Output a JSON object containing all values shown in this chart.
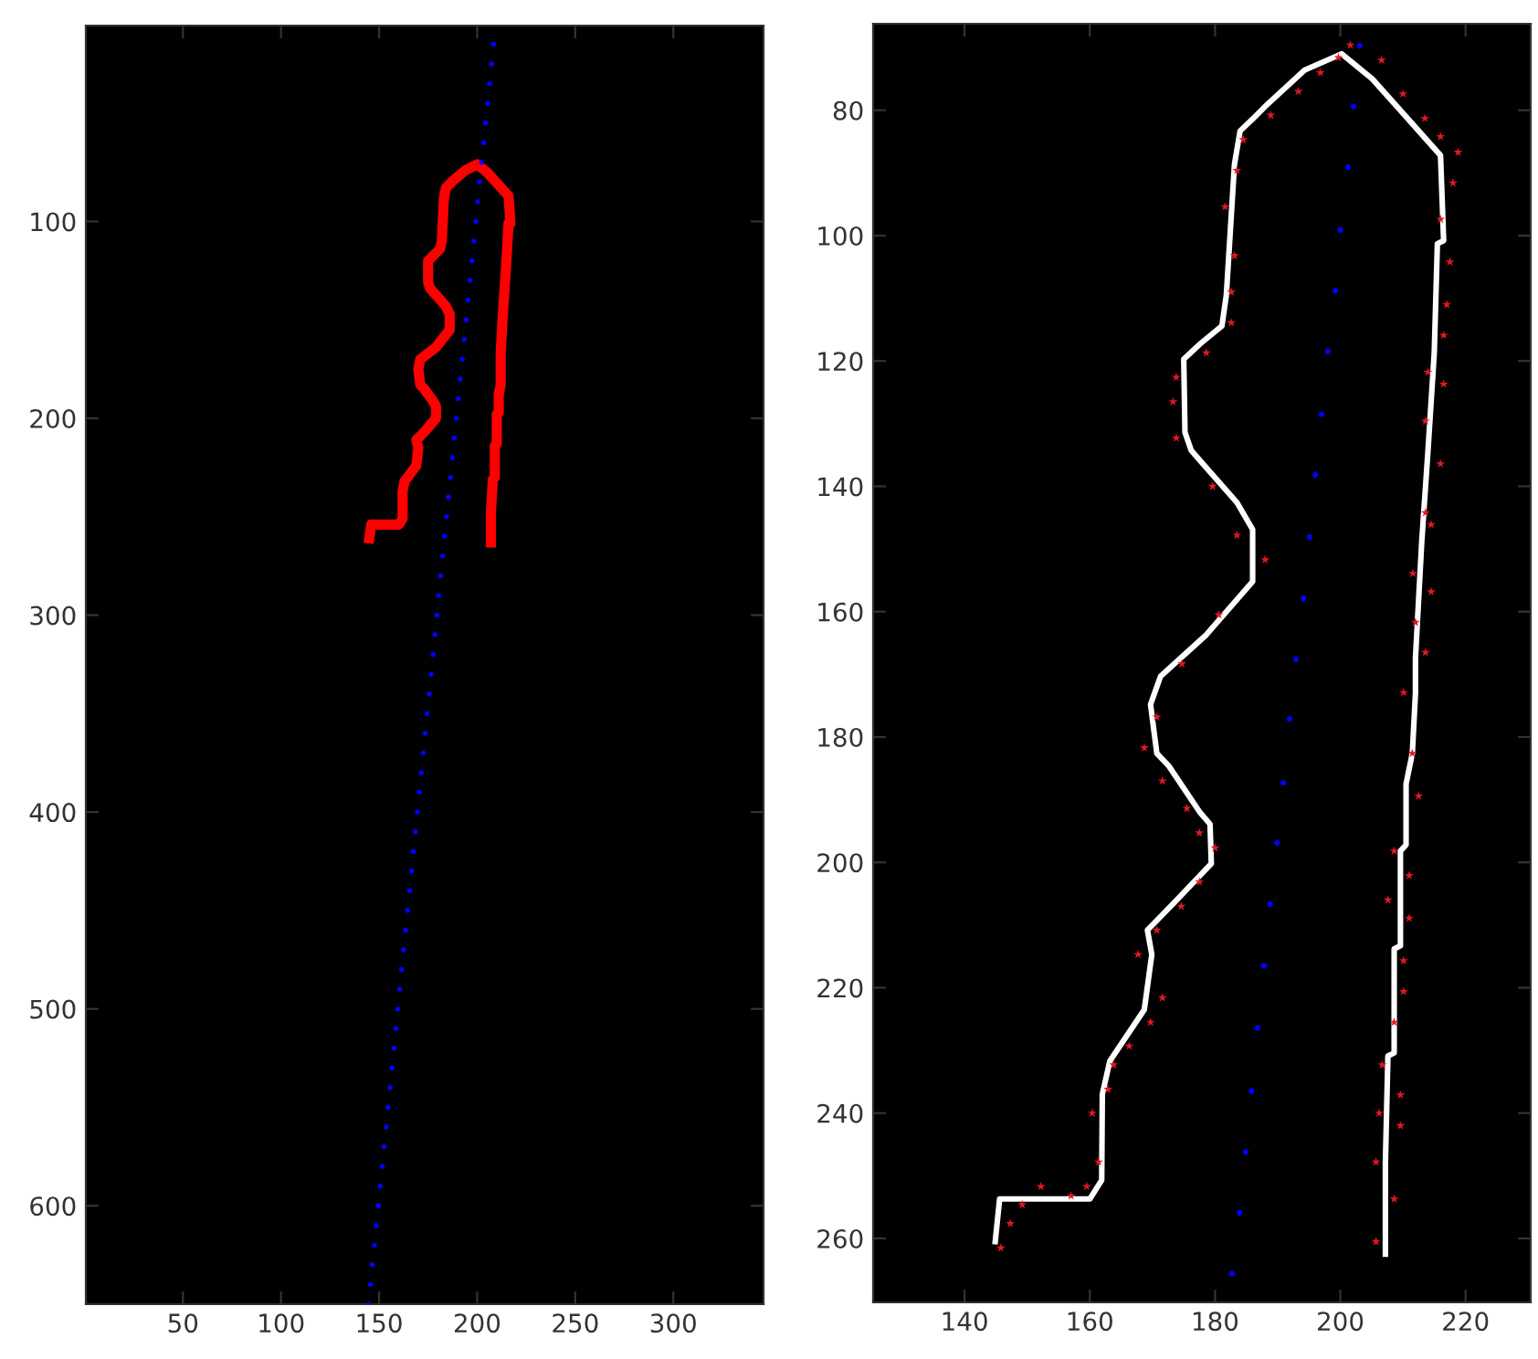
{
  "chart_data": [
    {
      "type": "scatter",
      "xlim": [
        0.5,
        346
      ],
      "ylim": [
        650,
        0.5
      ],
      "xticks": [
        50,
        100,
        150,
        200,
        250,
        300
      ],
      "yticks": [
        100,
        200,
        300,
        400,
        500,
        600
      ],
      "grid": false,
      "legend": false,
      "series": [
        {
          "marker": "circle",
          "color": "#0000ff",
          "x": [
            208.3,
            207.3,
            206.3,
            205.3,
            204.3,
            203.3,
            202.3,
            201.3,
            200.3,
            199.3,
            198.4,
            197.4,
            196.4,
            195.4,
            194.4,
            193.4,
            192.4,
            191.4,
            190.4,
            189.4,
            188.4,
            187.4,
            186.4,
            185.4,
            184.4,
            183.4,
            182.4,
            181.4,
            180.4,
            179.4,
            178.5,
            177.5,
            176.5,
            175.5,
            174.5,
            173.5,
            172.5,
            171.5,
            170.5,
            169.5,
            168.5,
            167.5,
            166.5,
            165.5,
            164.5,
            163.5,
            162.5,
            161.5,
            160.5,
            159.5,
            158.6,
            157.6,
            156.6,
            155.6,
            154.6,
            153.6,
            152.6,
            151.6,
            150.6,
            149.6,
            148.6,
            147.6,
            146.6,
            145.6,
            144.6
          ],
          "values": [
            10,
            20,
            30,
            40,
            50,
            60,
            70,
            80,
            90,
            100,
            110,
            120,
            130,
            140,
            150,
            160,
            170,
            180,
            190,
            200,
            210,
            220,
            230,
            240,
            250,
            260,
            270,
            280,
            290,
            300,
            310,
            320,
            330,
            340,
            350,
            360,
            370,
            380,
            390,
            400,
            410,
            420,
            430,
            440,
            450,
            460,
            470,
            480,
            490,
            500,
            510,
            520,
            530,
            540,
            550,
            560,
            570,
            580,
            590,
            600,
            610,
            620,
            630,
            640,
            650
          ]
        },
        {
          "type": "line",
          "color": "#ff0000",
          "line_style": "solid",
          "marker": "none",
          "x": [
            145,
            146,
            160,
            162,
            162,
            163,
            169,
            170,
            169,
            173,
            179,
            179,
            178,
            173,
            171,
            170,
            171,
            179,
            186,
            186,
            184,
            176,
            175,
            175,
            178,
            181,
            182,
            183,
            184,
            186,
            188,
            194,
            200,
            205,
            216,
            217,
            216,
            215,
            214,
            213,
            212,
            212,
            212,
            211,
            211,
            210,
            210,
            209,
            209,
            208,
            207,
            207
          ],
          "values": [
            261,
            254,
            254,
            251,
            237,
            232,
            224,
            215,
            211,
            207,
            200,
            194,
            192,
            185,
            183,
            175,
            170,
            164,
            155,
            147,
            143,
            134,
            131,
            120,
            117,
            114,
            110,
            89,
            83,
            81,
            79,
            74,
            71,
            75,
            87,
            101,
            101,
            119,
            134,
            149,
            167,
            173,
            183,
            188,
            197,
            198,
            213,
            214,
            230,
            231,
            248,
            263
          ]
        }
      ]
    },
    {
      "type": "scatter",
      "xlim": [
        125.4,
        230.4
      ],
      "ylim": [
        270.2,
        66.2
      ],
      "xticks": [
        140,
        160,
        180,
        200,
        220
      ],
      "yticks": [
        80,
        100,
        120,
        140,
        160,
        180,
        200,
        220,
        240,
        260
      ],
      "grid": false,
      "legend": false,
      "series": [
        {
          "type": "line",
          "color": "#ffffff",
          "line_style": "solid",
          "marker": "none",
          "x": [
            144.9,
            145.6,
            160,
            161.9,
            162,
            163.2,
            168.7,
            169.9,
            169.2,
            173.4,
            179.4,
            179.2,
            177.5,
            172.6,
            170.7,
            169.7,
            171.3,
            178.6,
            186,
            186,
            183.5,
            176.2,
            175.2,
            175,
            177.7,
            181.1,
            181.8,
            183.1,
            184,
            186,
            188,
            194.3,
            200.2,
            205.1,
            216,
            216.5,
            215.5,
            215,
            214,
            213,
            212,
            212,
            211.5,
            210.5,
            210.5,
            209.6,
            209.6,
            208.6,
            208.6,
            207.6,
            207.2,
            207.2
          ],
          "values": [
            260.5,
            253.7,
            253.7,
            250.7,
            237,
            231.7,
            223.5,
            214.7,
            210.8,
            206.5,
            200.2,
            193.9,
            191.9,
            184.6,
            182.6,
            174.8,
            170.3,
            163.7,
            155.2,
            146.9,
            142.6,
            134.3,
            131.4,
            119.7,
            117.2,
            114.4,
            109.5,
            88.6,
            83.3,
            81.4,
            79.4,
            73.6,
            71,
            75,
            87.2,
            100.8,
            101.3,
            118.7,
            134.3,
            148.9,
            167.4,
            173,
            182.6,
            187.5,
            197.2,
            198.2,
            213.3,
            213.8,
            230.4,
            230.9,
            248,
            262.5
          ]
        },
        {
          "marker": "star",
          "color": "#e0191e",
          "x": [
            201.6,
            206.6,
            210,
            213.5,
            216,
            218.8,
            218,
            216,
            217.5,
            217,
            216.5,
            214,
            216.5,
            213.6,
            216,
            213.6,
            214.5,
            211.6,
            214.5,
            212,
            213.6,
            210.1,
            211.5,
            212.5,
            208.6,
            211,
            207.6,
            211,
            210.1,
            210.1,
            208.6,
            206.7,
            209.6,
            206.2,
            209.6,
            205.7,
            208.6,
            205.7,
            145.8,
            147.3,
            149.2,
            152.2,
            157,
            159.5,
            161.4,
            160.4,
            162.9,
            163.8,
            166.3,
            169.7,
            171.6,
            167.7,
            170.7,
            174.6,
            177.5,
            180,
            177.5,
            175.5,
            171.6,
            168.7,
            170.7,
            174.7,
            180.6,
            188,
            183.5,
            179.6,
            173.8,
            173.3,
            173.8,
            178.6,
            182.6,
            182.6,
            183.1,
            181.6,
            183.5,
            184.5,
            188.9,
            193.3,
            196.8,
            199.7
          ],
          "values": [
            69.6,
            72,
            77.4,
            81.3,
            84.2,
            86.7,
            91.6,
            97.4,
            104.2,
            111,
            115.9,
            121.8,
            123.7,
            129.6,
            136.4,
            144.2,
            146.1,
            153.9,
            156.8,
            161.7,
            166.5,
            172.9,
            182.6,
            189.4,
            198.2,
            202.1,
            206,
            208.9,
            215.7,
            220.6,
            225.5,
            232.3,
            237.1,
            240,
            242,
            247.8,
            253.7,
            260.5,
            261.5,
            257.6,
            254.6,
            251.7,
            253.2,
            251.7,
            247.8,
            240,
            236.2,
            232.3,
            229.3,
            225.5,
            221.6,
            214.7,
            210.8,
            207,
            203.1,
            197.7,
            195.3,
            191.4,
            187,
            181.7,
            176.8,
            168.3,
            160.5,
            151.7,
            147.8,
            140,
            132.3,
            126.5,
            122.6,
            118.7,
            113.9,
            109,
            103.2,
            95.4,
            89.6,
            84.7,
            80.8,
            77,
            74,
            71.6
          ]
        },
        {
          "marker": "circle",
          "color": "#0000ff",
          "x": [
            203.1,
            202.1,
            201.2,
            200,
            199.2,
            198,
            197,
            196,
            195.1,
            194.1,
            192.9,
            191.9,
            190.9,
            189.9,
            188.8,
            187.8,
            186.8,
            185.8,
            184.9,
            183.9,
            182.7
          ],
          "values": [
            69.7,
            79.4,
            89.1,
            99.1,
            108.8,
            118.5,
            128.5,
            138.2,
            148.1,
            157.9,
            167.6,
            177.1,
            187.3,
            196.9,
            206.7,
            216.5,
            226.4,
            236.5,
            246.2,
            255.9,
            265.6
          ]
        }
      ]
    }
  ]
}
